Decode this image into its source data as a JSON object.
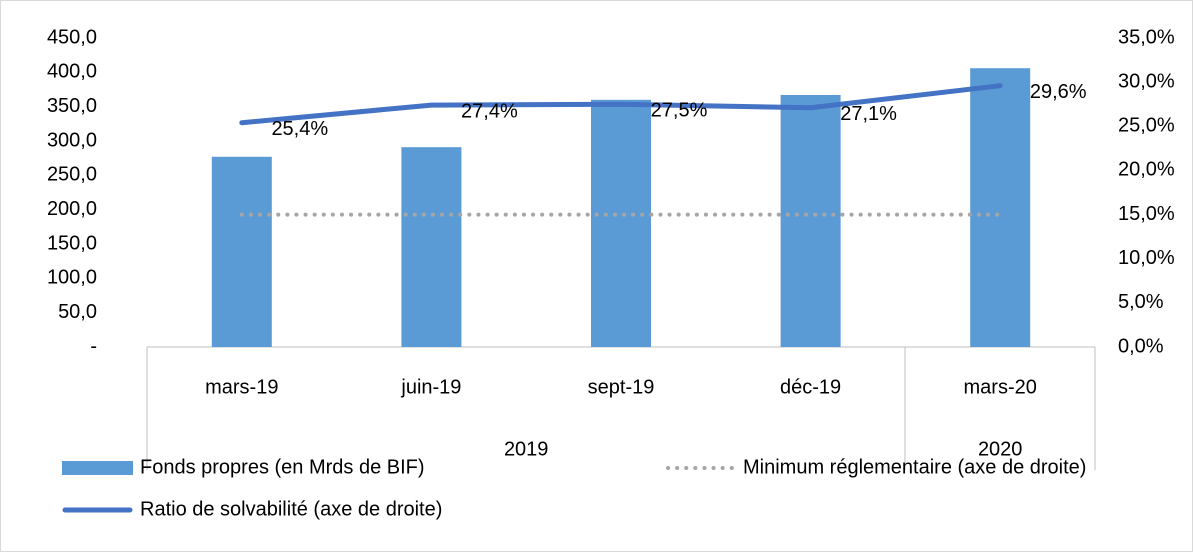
{
  "chart_data": {
    "type": "bar",
    "categories": [
      "mars-19",
      "juin-19",
      "sept-19",
      "déc-19",
      "mars-20"
    ],
    "category_groups": [
      "2019",
      null,
      null,
      null,
      "2020"
    ],
    "series": [
      {
        "name": "Fonds propres (en Mrds de BIF)",
        "type": "bar",
        "color": "#5b9bd5",
        "values": [
          277,
          291,
          360,
          367,
          406
        ]
      },
      {
        "name": "Minimum réglementaire (axe de droite)",
        "type": "dotted-line",
        "axis": "y2",
        "color": "#a6a6a6",
        "values": [
          15,
          15,
          15,
          15,
          15
        ]
      },
      {
        "name": "Ratio de solvabilité (axe de droite)",
        "type": "line",
        "axis": "y2",
        "color": "#4472c4",
        "values": [
          25.4,
          27.4,
          27.5,
          27.1,
          29.6
        ],
        "value_labels": [
          "25,4%",
          "27,4%",
          "27,5%",
          "27,1%",
          "29,6%"
        ]
      }
    ],
    "ylim": [
      0,
      450
    ],
    "yticks": [
      {
        "value": 0,
        "label": "-"
      },
      {
        "value": 50,
        "label": "50,0"
      },
      {
        "value": 100,
        "label": "100,0"
      },
      {
        "value": 150,
        "label": "150,0"
      },
      {
        "value": 200,
        "label": "200,0"
      },
      {
        "value": 250,
        "label": "250,0"
      },
      {
        "value": 300,
        "label": "300,0"
      },
      {
        "value": 350,
        "label": "350,0"
      },
      {
        "value": 400,
        "label": "400,0"
      },
      {
        "value": 450,
        "label": "450,0"
      }
    ],
    "y2lim": [
      0,
      35
    ],
    "y2ticks": [
      {
        "value": 0,
        "label": "0,0%"
      },
      {
        "value": 5,
        "label": "5,0%"
      },
      {
        "value": 10,
        "label": "10,0%"
      },
      {
        "value": 15,
        "label": "15,0%"
      },
      {
        "value": 20,
        "label": "20,0%"
      },
      {
        "value": 25,
        "label": "25,0%"
      },
      {
        "value": 30,
        "label": "30,0%"
      },
      {
        "value": 35,
        "label": "35,0%"
      }
    ],
    "grid": false,
    "legend": "bottom"
  }
}
